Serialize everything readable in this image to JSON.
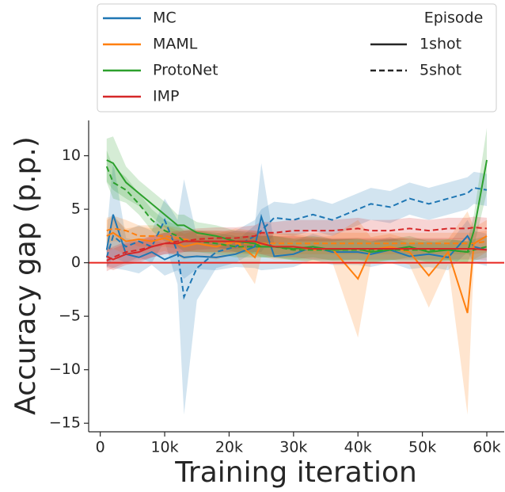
{
  "chart_data": {
    "type": "line",
    "xlabel": "Training iteration",
    "ylabel": "Accuracy gap (p.p.)",
    "xlim": [
      -1800,
      62700
    ],
    "ylim": [
      -15.8,
      13.3
    ],
    "xticks": [
      0,
      {
        "value": 10000,
        "label": "10k"
      },
      {
        "value": 20000,
        "label": "20k"
      },
      {
        "value": 30000,
        "label": "30k"
      },
      {
        "value": 40000,
        "label": "40k"
      },
      {
        "value": 50000,
        "label": "50k"
      },
      {
        "value": 60000,
        "label": "60k"
      }
    ],
    "yticks": [
      {
        "value": -15,
        "label": "−15"
      },
      {
        "value": -10,
        "label": "−10"
      },
      {
        "value": -5,
        "label": "−5"
      },
      0,
      5,
      10
    ],
    "reference_line": {
      "value": 0,
      "color": "#e8251f"
    },
    "legend": {
      "title": "Episode",
      "styles": [
        {
          "label": "1shot",
          "dash": "solid"
        },
        {
          "label": "5shot",
          "dash": "dashed"
        }
      ]
    },
    "x": [
      1000,
      2000,
      4000,
      6000,
      8000,
      10000,
      12000,
      13000,
      15000,
      18000,
      21000,
      24000,
      25000,
      27000,
      30000,
      33000,
      36000,
      40000,
      42000,
      45000,
      48000,
      51000,
      54000,
      57000,
      58000,
      60000
    ],
    "series": [
      {
        "name": "MC",
        "color": "#1f77b4",
        "dash": "solid",
        "values": [
          1.2,
          4.5,
          0.8,
          0.5,
          1.0,
          0.3,
          0.8,
          0.5,
          0.6,
          0.5,
          0.8,
          1.5,
          4.3,
          0.6,
          0.8,
          1.5,
          1.0,
          1.0,
          0.8,
          1.2,
          0.6,
          0.8,
          0.5,
          2.5,
          1.5,
          1.2
        ],
        "ci": [
          1.5,
          5,
          1.5,
          1.5,
          1.2,
          1.5,
          1.5,
          2,
          1.2,
          1.2,
          1.2,
          2,
          5,
          1.2,
          1.2,
          1.2,
          1.2,
          1.2,
          1.2,
          1.2,
          1.2,
          1.2,
          1.2,
          1.5,
          1.5,
          1.5
        ]
      },
      {
        "name": "MC",
        "color": "#1f77b4",
        "dash": "dashed",
        "values": [
          0.5,
          2.5,
          1.5,
          2.0,
          1.5,
          4.0,
          1.0,
          -3.2,
          -0.5,
          1.0,
          1.5,
          2.5,
          3.0,
          4.2,
          4.0,
          4.5,
          4.0,
          5.0,
          5.5,
          5.2,
          6.0,
          5.5,
          6.0,
          6.5,
          7.0,
          6.8
        ],
        "ci": [
          1,
          2,
          1.5,
          1.5,
          1.5,
          2,
          3,
          11,
          3,
          1.5,
          1.5,
          1.5,
          2,
          1.5,
          1.5,
          1.5,
          1.5,
          1.5,
          1.5,
          1.5,
          1.5,
          1.5,
          1.5,
          1.5,
          1.5,
          1.5
        ]
      },
      {
        "name": "MAML",
        "color": "#ff7f0e",
        "dash": "solid",
        "values": [
          2.5,
          2.8,
          2.0,
          2.2,
          2.0,
          2.3,
          1.8,
          1.5,
          1.8,
          1.5,
          2.0,
          0.5,
          1.8,
          1.5,
          1.5,
          1.2,
          1.3,
          -1.5,
          1.2,
          1.5,
          1.0,
          -1.2,
          1.0,
          -4.7,
          1.8,
          2.5
        ],
        "ci": [
          1.5,
          1.5,
          1.2,
          1.2,
          1.2,
          1.2,
          1.2,
          1.2,
          1.2,
          1.2,
          1.2,
          2.5,
          1.2,
          1.2,
          1.2,
          1.2,
          1.2,
          5.5,
          1.2,
          1.2,
          1.2,
          3,
          1.2,
          9.5,
          1.5,
          1.5
        ]
      },
      {
        "name": "MAML",
        "color": "#ff7f0e",
        "dash": "dashed",
        "values": [
          3.0,
          3.2,
          3.0,
          2.5,
          2.5,
          2.5,
          2.3,
          2.2,
          2.0,
          2.0,
          1.8,
          1.8,
          1.8,
          1.8,
          1.8,
          1.8,
          1.8,
          1.8,
          1.8,
          1.8,
          1.8,
          1.8,
          1.8,
          1.8,
          1.8,
          2.0
        ],
        "ci": [
          1.2,
          1.2,
          1,
          1,
          1,
          1,
          1,
          1,
          1,
          1,
          1,
          1,
          1,
          1,
          1,
          1,
          1,
          1,
          1,
          1,
          1,
          1,
          1,
          1,
          1,
          1
        ]
      },
      {
        "name": "ProtoNet",
        "color": "#2ca02c",
        "dash": "solid",
        "values": [
          9.6,
          9.3,
          7.5,
          6.5,
          5.5,
          4.5,
          3.5,
          3.5,
          2.8,
          2.5,
          2.0,
          1.8,
          1.5,
          1.5,
          1.3,
          1.5,
          1.2,
          1.3,
          1.0,
          1.2,
          1.5,
          1.0,
          1.2,
          1.0,
          3.0,
          9.6
        ],
        "ci": [
          2,
          2.5,
          1.5,
          1.2,
          1.2,
          1.2,
          1,
          1,
          1,
          1,
          1,
          1,
          1,
          1,
          1,
          1,
          1,
          1,
          1,
          1,
          1,
          1,
          1,
          1,
          1.5,
          3
        ]
      },
      {
        "name": "ProtoNet",
        "color": "#2ca02c",
        "dash": "dashed",
        "values": [
          9.0,
          7.5,
          6.8,
          5.5,
          4.0,
          3.0,
          2.5,
          2.0,
          2.0,
          1.8,
          1.5,
          1.5,
          1.5,
          1.5,
          1.2,
          1.2,
          1.2,
          1.2,
          1.2,
          1.2,
          1.2,
          1.2,
          1.2,
          1.0,
          1.2,
          1.5
        ],
        "ci": [
          1.5,
          1.5,
          1.2,
          1,
          1,
          1,
          1,
          1,
          1,
          1,
          1,
          1,
          1,
          1,
          1,
          1,
          1,
          1,
          1,
          1,
          1,
          1,
          1,
          1,
          1,
          1
        ]
      },
      {
        "name": "IMP",
        "color": "#d62728",
        "dash": "solid",
        "values": [
          0.6,
          0.3,
          0.8,
          1.0,
          1.5,
          1.8,
          1.8,
          2.0,
          2.0,
          2.0,
          2.0,
          2.0,
          1.8,
          1.5,
          1.5,
          1.3,
          1.3,
          1.3,
          1.3,
          1.3,
          1.3,
          1.3,
          1.3,
          1.3,
          1.3,
          1.2
        ],
        "ci": [
          1,
          1,
          1,
          1,
          1,
          1,
          1,
          1,
          1,
          1,
          1,
          1,
          1,
          1,
          1,
          1,
          1,
          1,
          1,
          1,
          1,
          1,
          1,
          1,
          1,
          1
        ]
      },
      {
        "name": "IMP",
        "color": "#d62728",
        "dash": "dashed",
        "values": [
          0.2,
          0.5,
          1.0,
          1.2,
          1.5,
          1.8,
          2.0,
          2.0,
          2.2,
          2.3,
          2.3,
          2.5,
          2.8,
          2.8,
          3.0,
          3.0,
          3.0,
          3.2,
          3.0,
          3.0,
          3.2,
          3.0,
          3.2,
          3.2,
          3.3,
          3.2
        ],
        "ci": [
          1,
          1,
          1,
          1,
          1,
          1,
          1,
          1,
          1,
          1,
          1,
          1,
          1,
          1,
          1,
          1,
          1,
          1,
          1,
          1,
          1,
          1,
          1,
          1,
          1,
          1
        ]
      }
    ]
  }
}
